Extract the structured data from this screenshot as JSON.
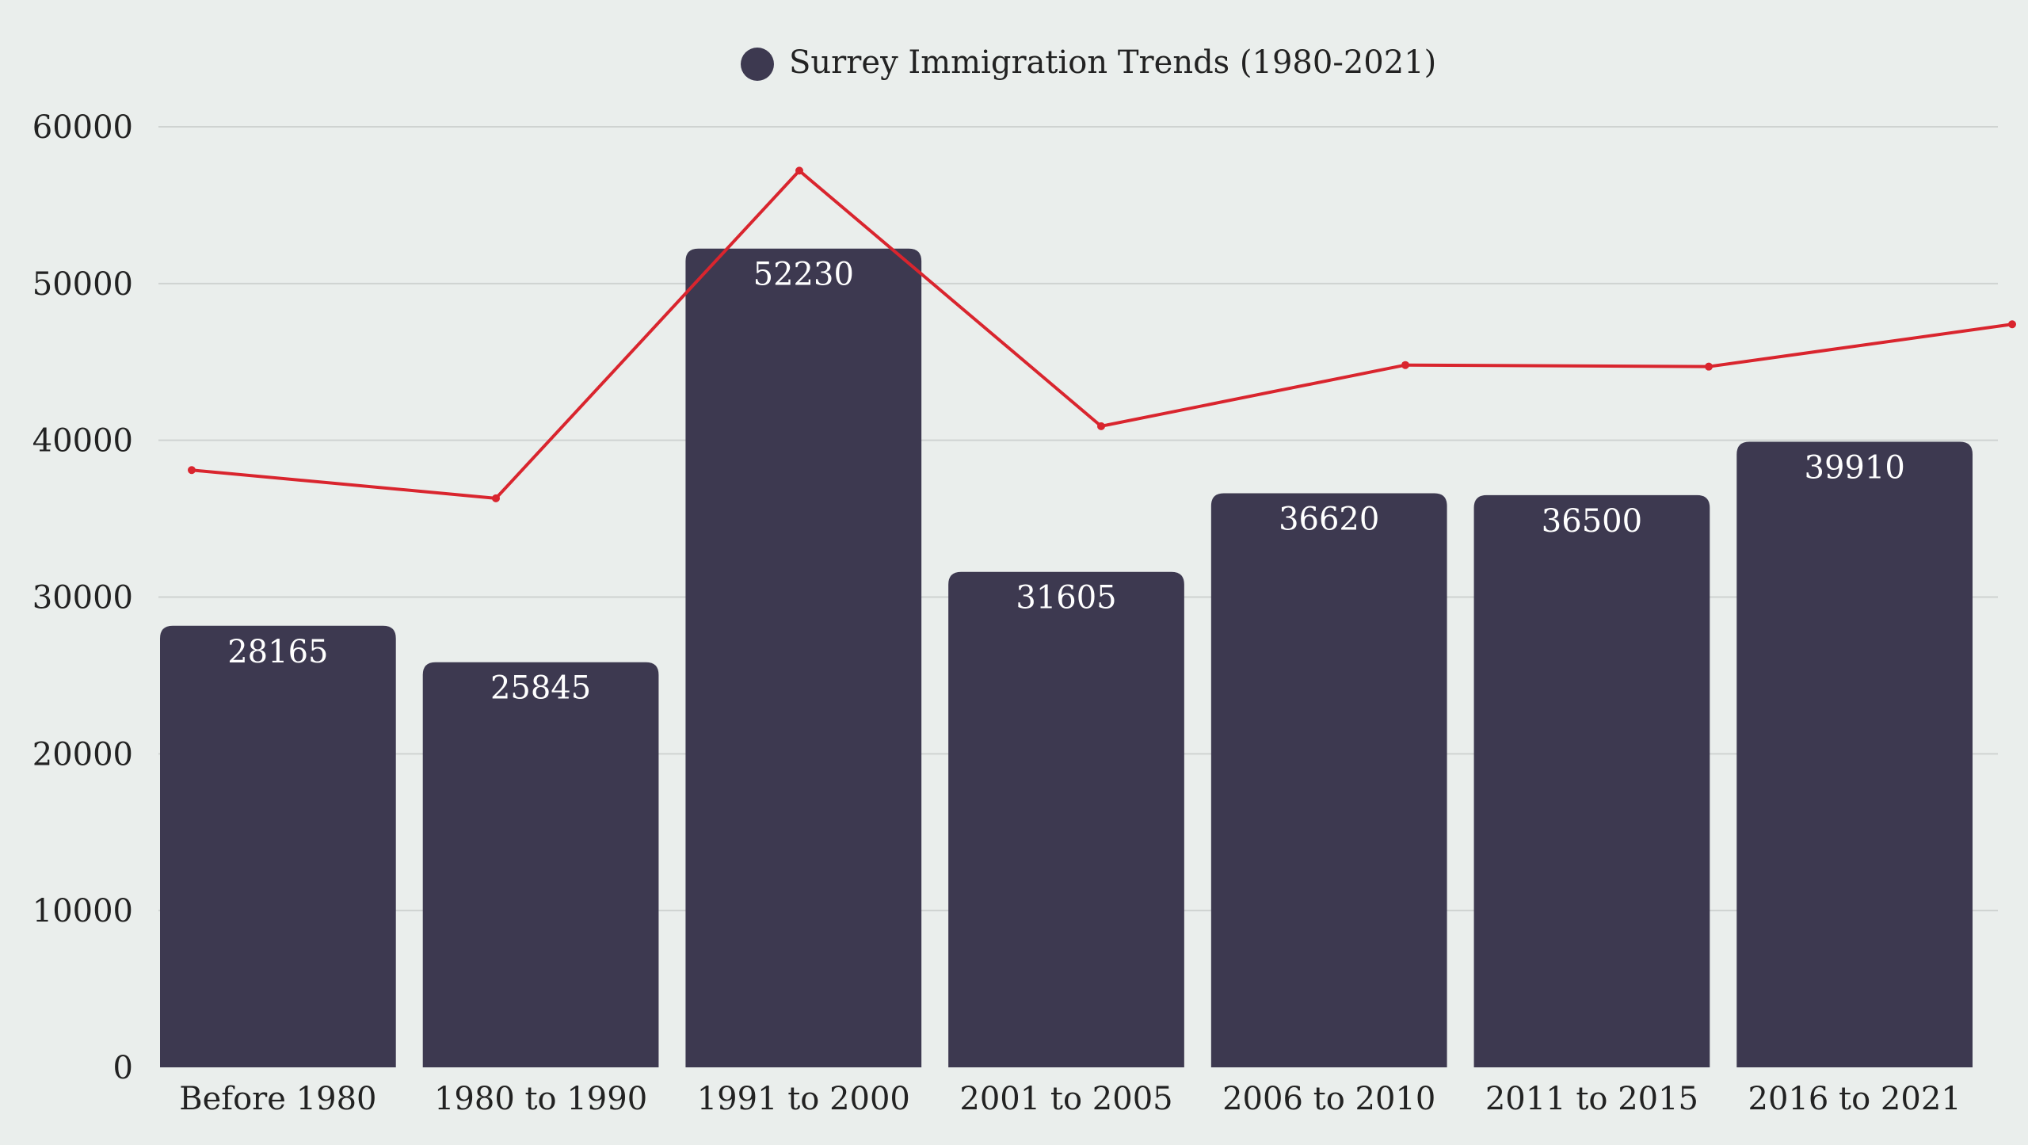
{
  "chart_data": {
    "type": "bar",
    "title": "",
    "xlabel": "",
    "ylabel": "",
    "ylim": [
      0,
      60000
    ],
    "yticks": [
      0,
      10000,
      20000,
      30000,
      40000,
      50000,
      60000
    ],
    "grid": true,
    "legend": {
      "position": "top-center",
      "entries": [
        "Surrey Immigration Trends (1980-2021)"
      ]
    },
    "categories": [
      "Before 1980",
      "1980 to 1990",
      "1991 to 2000",
      "2001 to 2005",
      "2006 to 2010",
      "2011 to 2015",
      "2016 to 2021"
    ],
    "series": [
      {
        "name": "Surrey Immigration Trends (1980-2021)",
        "type": "bar",
        "color": "#3d3950",
        "values": [
          28165,
          25845,
          52230,
          31605,
          36620,
          36500,
          39910
        ],
        "data_labels": [
          "28165",
          "25845",
          "52230",
          "31605",
          "36620",
          "36500",
          "39910"
        ]
      },
      {
        "type": "line",
        "color": "#d9252e",
        "values": [
          38100,
          36300,
          57200,
          40900,
          44800,
          44700,
          47400
        ]
      }
    ]
  }
}
